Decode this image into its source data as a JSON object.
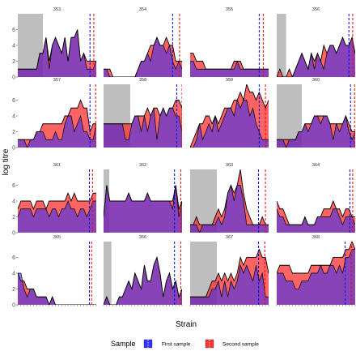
{
  "chart_data": {
    "type": "area",
    "ylabel": "log titre",
    "xlabel": "Strain",
    "ylim": [
      0,
      8
    ],
    "yticks": [
      0,
      2,
      4,
      6
    ],
    "legend": {
      "title": "Sample",
      "position": "bottom",
      "entries": [
        {
          "name": "First sample",
          "color": "#3333ff"
        },
        {
          "name": "Second sample",
          "color": "#ff3333"
        }
      ]
    },
    "panels": [
      {
        "title": "353",
        "first": [
          1,
          1,
          1,
          1,
          1,
          1,
          1,
          3,
          3,
          5,
          1,
          4,
          5,
          4,
          3,
          5,
          2,
          5,
          5,
          6,
          2,
          3,
          1,
          1,
          1,
          2
        ],
        "second": [
          1,
          1,
          1,
          1,
          1,
          1,
          1,
          3,
          3,
          5,
          2,
          4,
          5,
          4,
          3,
          5,
          2,
          5,
          5,
          6,
          2,
          3,
          2,
          2,
          2,
          2
        ],
        "first_line": 23.0,
        "second_line": 24.2,
        "shade": [
          0,
          8
        ]
      },
      {
        "title": "354",
        "first": [
          1,
          1,
          0,
          0,
          0,
          0,
          0,
          0,
          0,
          0,
          0,
          1,
          2,
          2,
          3,
          2,
          4,
          5,
          4,
          4,
          3,
          4,
          2,
          1,
          2,
          1
        ],
        "second": [
          1,
          1,
          1,
          0,
          0,
          0,
          0,
          0,
          0,
          0,
          0,
          1,
          2,
          2,
          3,
          4,
          4,
          5,
          4,
          4,
          5,
          4,
          4,
          2,
          2,
          2
        ],
        "first_line": 22.0,
        "second_line": 24.2,
        "shade": null
      },
      {
        "title": "355",
        "first": [
          2,
          2,
          1,
          1,
          1,
          1,
          1,
          1,
          1,
          1,
          1,
          1,
          1,
          1,
          1,
          2,
          1,
          1,
          1,
          1,
          1,
          1,
          1,
          1,
          1,
          1
        ],
        "second": [
          3,
          3,
          2,
          2,
          2,
          1,
          1,
          1,
          1,
          1,
          1,
          1,
          1,
          1,
          2,
          2,
          2,
          1,
          1,
          1,
          1,
          1,
          1,
          1,
          1,
          1
        ],
        "first_line": 22.0,
        "second_line": 23.3,
        "shade": null
      },
      {
        "title": "356",
        "first": [
          0,
          0,
          0,
          0,
          0,
          0,
          1,
          2,
          3,
          2,
          1,
          3,
          1,
          3,
          2,
          1,
          3,
          4,
          4,
          3,
          4,
          5,
          4,
          4,
          5,
          3
        ],
        "second": [
          0,
          1,
          0,
          0,
          1,
          0,
          1,
          2,
          3,
          2,
          1,
          3,
          2,
          3,
          2,
          4,
          3,
          4,
          4,
          3,
          4,
          5,
          4,
          4,
          5,
          3
        ],
        "first_line": 23.0,
        "second_line": 24.2,
        "shade": [
          0,
          3
        ]
      },
      {
        "title": "357",
        "first": [
          1,
          1,
          1,
          0,
          1,
          1,
          2,
          2,
          2,
          1,
          1,
          1,
          2,
          1,
          1,
          3,
          4,
          4,
          2,
          3,
          4,
          2,
          2,
          1,
          1,
          3
        ],
        "second": [
          1,
          1,
          1,
          1,
          1,
          1,
          2,
          2,
          3,
          3,
          3,
          3,
          3,
          3,
          3,
          4,
          4,
          5,
          5,
          5,
          6,
          5,
          5,
          2,
          3,
          3
        ],
        "first_line": 23.0,
        "second_line": 24.8,
        "shade": null
      },
      {
        "title": "358",
        "first": [
          3,
          3,
          3,
          3,
          3,
          3,
          3,
          1,
          1,
          3,
          4,
          4,
          2,
          4,
          2,
          4,
          5,
          1,
          4,
          5,
          4,
          5,
          5,
          4,
          4,
          2
        ],
        "second": [
          3,
          3,
          3,
          3,
          3,
          3,
          3,
          3,
          3,
          3,
          4,
          4,
          4,
          4,
          5,
          4,
          5,
          5,
          4,
          5,
          4,
          5,
          5,
          6,
          6,
          5
        ],
        "first_line": 23.3,
        "second_line": 25.0,
        "shade": [
          0,
          8.5
        ]
      },
      {
        "title": "359",
        "first": [
          0,
          0,
          1,
          3,
          1,
          2,
          3,
          2,
          4,
          2,
          3,
          4,
          5,
          5,
          4,
          6,
          5,
          6,
          6,
          4,
          5,
          3,
          2,
          1,
          1,
          1
        ],
        "second": [
          0,
          1,
          2,
          3,
          3,
          4,
          4,
          3,
          4,
          3,
          4,
          5,
          5,
          5,
          6,
          6,
          7,
          6,
          8,
          7,
          7,
          6,
          7,
          6,
          5,
          6
        ],
        "first_line": 22.0,
        "second_line": 24.0,
        "shade": null
      },
      {
        "title": "360",
        "first": [
          1,
          1,
          1,
          0,
          1,
          1,
          1,
          2,
          2,
          3,
          2,
          3,
          4,
          4,
          3,
          4,
          4,
          3,
          1,
          3,
          2,
          3,
          4,
          2,
          1,
          2
        ],
        "second": [
          1,
          1,
          1,
          1,
          1,
          1,
          1,
          2,
          2,
          3,
          3,
          3,
          4,
          4,
          4,
          4,
          4,
          3,
          3,
          3,
          3,
          3,
          4,
          3,
          2,
          2
        ],
        "first_line": 23.5,
        "second_line": 24.8,
        "shade": [
          0,
          8
        ]
      },
      {
        "title": "361",
        "first": [
          2,
          3,
          3,
          3,
          3,
          2,
          3,
          3,
          3,
          3,
          2,
          3,
          3,
          2,
          3,
          3,
          4,
          3,
          3,
          2,
          3,
          3,
          2,
          3,
          4,
          4
        ],
        "second": [
          3,
          4,
          4,
          4,
          4,
          3,
          4,
          4,
          4,
          3,
          4,
          4,
          4,
          4,
          4,
          4,
          5,
          4,
          5,
          4,
          4,
          4,
          4,
          4,
          5,
          5
        ],
        "first_line": 22.8,
        "second_line": 23.8,
        "shade": null
      },
      {
        "title": "362",
        "first": [
          2,
          6,
          4,
          4,
          4,
          4,
          4,
          4,
          5,
          4,
          4,
          4,
          4,
          4,
          5,
          4,
          4,
          4,
          4,
          4,
          4,
          4,
          3,
          6,
          2,
          4
        ],
        "second": [
          2,
          6,
          4,
          4,
          4,
          4,
          4,
          4,
          5,
          4,
          4,
          4,
          4,
          4,
          5,
          4,
          4,
          4,
          4,
          4,
          4,
          4,
          4,
          6,
          3,
          4
        ],
        "first_line": 22.6,
        "second_line": 24.6,
        "shade": [
          0,
          1.8
        ]
      },
      {
        "title": "363",
        "first": [
          1,
          1,
          1,
          0,
          1,
          1,
          1,
          1,
          1,
          2,
          1,
          2,
          5,
          6,
          4,
          6,
          6,
          4,
          1,
          1,
          1,
          1,
          1,
          1,
          1,
          1
        ],
        "second": [
          1,
          1,
          2,
          1,
          1,
          1,
          1,
          1,
          2,
          3,
          2,
          3,
          5,
          6,
          5,
          6,
          8,
          5,
          3,
          2,
          1,
          1,
          1,
          2,
          1,
          1
        ],
        "first_line": 21.8,
        "second_line": 24.0,
        "shade": [
          0,
          8.5
        ]
      },
      {
        "title": "364",
        "first": [
          3,
          2,
          2,
          1,
          1,
          1,
          1,
          1,
          1,
          2,
          1,
          1,
          1,
          2,
          2,
          2,
          2,
          2,
          3,
          3,
          2,
          1,
          2,
          2,
          2,
          1
        ],
        "second": [
          4,
          3,
          3,
          2,
          1,
          1,
          1,
          1,
          1,
          2,
          1,
          1,
          1,
          2,
          2,
          3,
          3,
          3,
          4,
          3,
          3,
          2,
          3,
          3,
          2,
          2
        ],
        "first_line": 23.3,
        "second_line": 24.2,
        "shade": null
      },
      {
        "title": "365",
        "first": [
          4,
          4,
          2,
          1,
          2,
          2,
          1,
          1,
          1,
          1,
          0,
          1,
          0,
          0,
          0,
          0,
          0,
          0,
          0,
          0,
          0,
          0,
          0,
          0,
          0,
          0
        ],
        "second": [
          4,
          3,
          3,
          2,
          2,
          2,
          1,
          1,
          1,
          1,
          0,
          1,
          0,
          0,
          0,
          0,
          0,
          0,
          0,
          0,
          0,
          0,
          0,
          0,
          0,
          0
        ],
        "first_line": 22.8,
        "second_line": 23.5,
        "shade": null
      },
      {
        "title": "366",
        "first": [
          0,
          1,
          0,
          0,
          0,
          1,
          1,
          2,
          3,
          2,
          4,
          3,
          2,
          5,
          3,
          3,
          5,
          6,
          4,
          1,
          3,
          4,
          2,
          3,
          1,
          2
        ],
        "second": [
          0,
          1,
          0,
          0,
          0,
          1,
          1,
          2,
          3,
          2,
          4,
          3,
          2,
          5,
          3,
          3,
          5,
          6,
          4,
          1,
          3,
          4,
          2,
          3,
          1,
          2
        ],
        "first_line": 22.6,
        "second_line": 24.6,
        "shade": [
          0,
          2.5
        ]
      },
      {
        "title": "367",
        "first": [
          1,
          1,
          1,
          1,
          1,
          1,
          1,
          2,
          2,
          3,
          1,
          3,
          1,
          3,
          2,
          3,
          5,
          4,
          5,
          4,
          3,
          5,
          3,
          4,
          1,
          1
        ],
        "second": [
          1,
          1,
          1,
          1,
          1,
          1,
          2,
          3,
          3,
          4,
          3,
          4,
          3,
          4,
          3,
          4,
          6,
          5,
          6,
          6,
          6,
          6,
          7,
          6,
          6,
          4
        ],
        "first_line": 21.8,
        "second_line": 23.8,
        "shade": [
          0,
          8.5
        ]
      },
      {
        "title": "368",
        "first": [
          4,
          4,
          4,
          3,
          3,
          3,
          2,
          2,
          3,
          3,
          3,
          4,
          4,
          4,
          5,
          4,
          4,
          5,
          5,
          4,
          5,
          4,
          6,
          6,
          7,
          7
        ],
        "second": [
          4,
          5,
          5,
          5,
          5,
          4,
          4,
          4,
          4,
          4,
          4,
          5,
          5,
          5,
          5,
          5,
          5,
          5,
          6,
          6,
          6,
          6,
          7,
          7,
          8,
          7
        ],
        "first_line": 21.8,
        "second_line": 23.8,
        "shade": null
      }
    ],
    "x_tick_count": 26
  }
}
